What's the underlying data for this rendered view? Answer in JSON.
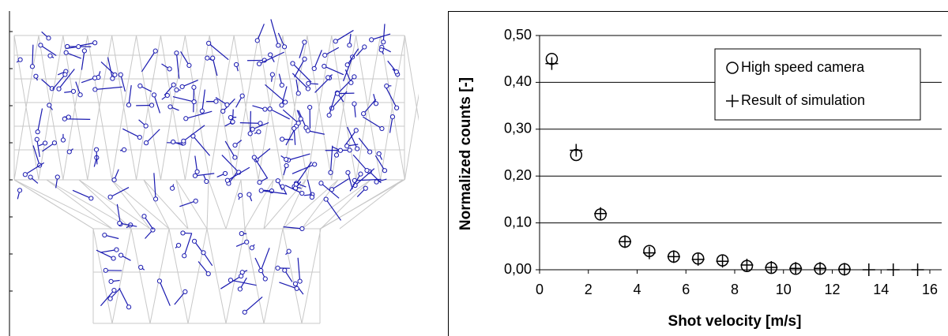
{
  "chart_data": {
    "type": "scatter",
    "xlabel": "Shot velocity [m/s]",
    "ylabel": "Normalized counts [-]",
    "xlim": [
      0,
      16
    ],
    "xticks": [
      0,
      2,
      4,
      6,
      8,
      10,
      12,
      14,
      16
    ],
    "ylim": [
      0,
      0.5
    ],
    "yticks": [
      {
        "value": 0,
        "label": "0,00"
      },
      {
        "value": 0.1,
        "label": "0,10"
      },
      {
        "value": 0.2,
        "label": "0,20"
      },
      {
        "value": 0.3,
        "label": "0,30"
      },
      {
        "value": 0.4,
        "label": "0,40"
      },
      {
        "value": 0.5,
        "label": "0,50"
      }
    ],
    "grid": true,
    "legend": "upper right",
    "series": [
      {
        "name": "High speed camera",
        "marker": "circle",
        "color": "#000000",
        "x": [
          0.5,
          1.5,
          2.5,
          3.5,
          4.5,
          5.5,
          6.5,
          7.5,
          8.5,
          9.5,
          10.5,
          11.5,
          12.5
        ],
        "values": [
          0.45,
          0.245,
          0.118,
          0.06,
          0.04,
          0.028,
          0.024,
          0.02,
          0.008,
          0.004,
          0.002,
          0.002,
          0.001
        ]
      },
      {
        "name": "Result of simulation",
        "marker": "plus",
        "color": "#000000",
        "x": [
          0.5,
          1.5,
          2.5,
          3.5,
          4.5,
          5.5,
          6.5,
          7.5,
          8.5,
          9.5,
          10.5,
          11.5,
          12.5,
          13.5,
          14.5,
          15.5
        ],
        "values": [
          0.44,
          0.255,
          0.12,
          0.06,
          0.036,
          0.028,
          0.022,
          0.018,
          0.01,
          0.005,
          0.003,
          0.003,
          0.001,
          0,
          0,
          0
        ]
      }
    ]
  }
}
